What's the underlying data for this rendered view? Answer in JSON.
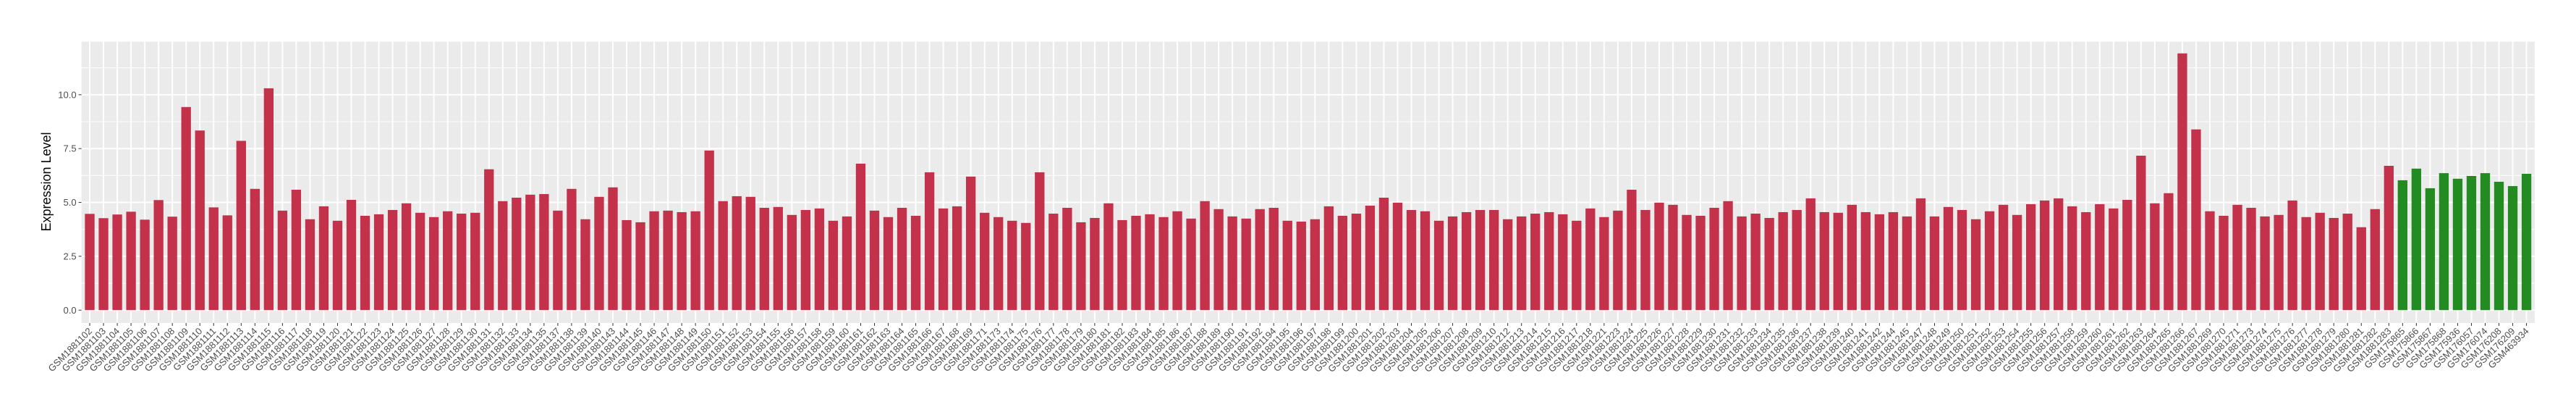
{
  "chart_data": {
    "type": "bar",
    "title": "",
    "xlabel": "",
    "ylabel": "Expression Level",
    "ylim": [
      -0.596,
      12.516
    ],
    "yticks": [
      "0.0",
      "2.5",
      "5.0",
      "7.5",
      "10.0"
    ],
    "grid": true,
    "legend": "none",
    "colors": {
      "series_1": "#C3314A",
      "series_2": "#228B22",
      "panel": "#EBEBEB",
      "grid": "#FFFFFF"
    },
    "categories": [
      "GSM1881102",
      "GSM1881103",
      "GSM1881104",
      "GSM1881105",
      "GSM1881106",
      "GSM1881107",
      "GSM1881108",
      "GSM1881109",
      "GSM1881110",
      "GSM1881111",
      "GSM1881112",
      "GSM1881113",
      "GSM1881114",
      "GSM1881115",
      "GSM1881116",
      "GSM1881117",
      "GSM1881118",
      "GSM1881119",
      "GSM1881120",
      "GSM1881121",
      "GSM1881122",
      "GSM1881123",
      "GSM1881124",
      "GSM1881125",
      "GSM1881126",
      "GSM1881127",
      "GSM1881128",
      "GSM1881129",
      "GSM1881130",
      "GSM1881131",
      "GSM1881132",
      "GSM1881133",
      "GSM1881134",
      "GSM1881135",
      "GSM1881137",
      "GSM1881138",
      "GSM1881139",
      "GSM1881140",
      "GSM1881143",
      "GSM1881144",
      "GSM1881145",
      "GSM1881146",
      "GSM1881147",
      "GSM1881148",
      "GSM1881149",
      "GSM1881150",
      "GSM1881151",
      "GSM1881152",
      "GSM1881153",
      "GSM1881154",
      "GSM1881155",
      "GSM1881156",
      "GSM1881157",
      "GSM1881158",
      "GSM1881159",
      "GSM1881160",
      "GSM1881161",
      "GSM1881162",
      "GSM1881163",
      "GSM1881164",
      "GSM1881165",
      "GSM1881166",
      "GSM1881167",
      "GSM1881168",
      "GSM1881169",
      "GSM1881171",
      "GSM1881173",
      "GSM1881174",
      "GSM1881175",
      "GSM1881176",
      "GSM1881177",
      "GSM1881178",
      "GSM1881179",
      "GSM1881180",
      "GSM1881181",
      "GSM1881182",
      "GSM1881183",
      "GSM1881184",
      "GSM1881185",
      "GSM1881186",
      "GSM1881187",
      "GSM1881188",
      "GSM1881189",
      "GSM1881190",
      "GSM1881191",
      "GSM1881192",
      "GSM1881194",
      "GSM1881195",
      "GSM1881196",
      "GSM1881197",
      "GSM1881198",
      "GSM1881199",
      "GSM1881200",
      "GSM1881201",
      "GSM1881202",
      "GSM1881203",
      "GSM1881204",
      "GSM1881205",
      "GSM1881206",
      "GSM1881207",
      "GSM1881208",
      "GSM1881209",
      "GSM1881210",
      "GSM1881212",
      "GSM1881213",
      "GSM1881214",
      "GSM1881215",
      "GSM1881216",
      "GSM1881217",
      "GSM1881218",
      "GSM1881221",
      "GSM1881223",
      "GSM1881224",
      "GSM1881225",
      "GSM1881226",
      "GSM1881227",
      "GSM1881228",
      "GSM1881229",
      "GSM1881230",
      "GSM1881231",
      "GSM1881232",
      "GSM1881233",
      "GSM1881234",
      "GSM1881235",
      "GSM1881236",
      "GSM1881237",
      "GSM1881238",
      "GSM1881239",
      "GSM1881240",
      "GSM1881241",
      "GSM1881242",
      "GSM1881244",
      "GSM1881245",
      "GSM1881247",
      "GSM1881248",
      "GSM1881249",
      "GSM1881250",
      "GSM1881251",
      "GSM1881252",
      "GSM1881253",
      "GSM1881254",
      "GSM1881255",
      "GSM1881256",
      "GSM1881257",
      "GSM1881258",
      "GSM1881259",
      "GSM1881260",
      "GSM1881261",
      "GSM1881262",
      "GSM1881263",
      "GSM1881264",
      "GSM1881265",
      "GSM1881266",
      "GSM1881267",
      "GSM1881269",
      "GSM1881270",
      "GSM1881271",
      "GSM1881273",
      "GSM1881274",
      "GSM1881275",
      "GSM1881276",
      "GSM1881277",
      "GSM1881278",
      "GSM1881279",
      "GSM1881280",
      "GSM1881281",
      "GSM1881282",
      "GSM1881283",
      "GSM175865",
      "GSM175866",
      "GSM175867",
      "GSM175868",
      "GSM175936",
      "GSM176057",
      "GSM176074",
      "GSM176208",
      "GSM176209",
      "GSM463934"
    ],
    "series": [
      {
        "color_key": "series_1",
        "values": [
          4.47,
          4.27,
          4.44,
          4.57,
          4.2,
          5.11,
          4.34,
          9.43,
          8.34,
          4.77,
          4.4,
          7.86,
          5.63,
          10.3,
          4.62,
          5.59,
          4.22,
          4.82,
          4.15,
          5.12,
          4.38,
          4.45,
          4.65,
          4.96,
          4.52,
          4.32,
          4.59,
          4.48,
          4.52,
          6.54,
          5.06,
          5.22,
          5.36,
          5.39,
          4.62,
          5.63,
          4.22,
          5.26,
          5.7,
          4.18,
          4.08,
          4.59,
          4.62,
          4.55,
          4.59,
          7.41,
          5.06,
          5.29,
          5.26,
          4.75,
          4.79,
          4.42,
          4.65,
          4.72,
          4.15,
          4.35,
          6.8,
          4.62,
          4.32,
          4.75,
          4.38,
          6.4,
          4.72,
          4.82,
          6.2,
          4.52,
          4.32,
          4.15,
          4.05,
          6.4,
          4.48,
          4.75,
          4.08,
          4.28,
          4.96,
          4.18,
          4.38,
          4.45,
          4.32,
          4.59,
          4.25,
          5.06,
          4.69,
          4.35,
          4.25,
          4.69,
          4.75,
          4.15,
          4.11,
          4.22,
          4.82,
          4.38,
          4.48,
          4.85,
          5.22,
          4.99,
          4.65,
          4.59,
          4.15,
          4.35,
          4.55,
          4.65,
          4.65,
          4.22,
          4.35,
          4.48,
          4.55,
          4.45,
          4.15,
          4.72,
          4.32,
          4.62,
          5.59,
          4.65,
          4.99,
          4.89,
          4.42,
          4.38,
          4.75,
          5.06,
          4.35,
          4.48,
          4.28,
          4.55,
          4.65,
          5.19,
          4.55,
          4.52,
          4.89,
          4.55,
          4.45,
          4.55,
          4.35,
          5.19,
          4.35,
          4.79,
          4.65,
          4.22,
          4.59,
          4.89,
          4.42,
          4.92,
          5.09,
          5.19,
          4.82,
          4.55,
          4.92,
          4.72,
          5.12,
          7.17,
          4.96,
          5.43,
          11.92,
          8.39,
          4.59,
          4.38,
          4.89,
          4.75,
          4.35,
          4.42,
          5.09,
          4.32,
          4.52,
          4.28,
          4.48,
          3.85,
          4.69,
          6.7,
          null,
          null,
          null,
          null,
          null,
          null,
          null,
          null,
          null,
          null
        ]
      },
      {
        "color_key": "series_2",
        "values": [
          null,
          null,
          null,
          null,
          null,
          null,
          null,
          null,
          null,
          null,
          null,
          null,
          null,
          null,
          null,
          null,
          null,
          null,
          null,
          null,
          null,
          null,
          null,
          null,
          null,
          null,
          null,
          null,
          null,
          null,
          null,
          null,
          null,
          null,
          null,
          null,
          null,
          null,
          null,
          null,
          null,
          null,
          null,
          null,
          null,
          null,
          null,
          null,
          null,
          null,
          null,
          null,
          null,
          null,
          null,
          null,
          null,
          null,
          null,
          null,
          null,
          null,
          null,
          null,
          null,
          null,
          null,
          null,
          null,
          null,
          null,
          null,
          null,
          null,
          null,
          null,
          null,
          null,
          null,
          null,
          null,
          null,
          null,
          null,
          null,
          null,
          null,
          null,
          null,
          null,
          null,
          null,
          null,
          null,
          null,
          null,
          null,
          null,
          null,
          null,
          null,
          null,
          null,
          null,
          null,
          null,
          null,
          null,
          null,
          null,
          null,
          null,
          null,
          null,
          null,
          null,
          null,
          null,
          null,
          null,
          null,
          null,
          null,
          null,
          null,
          null,
          null,
          null,
          null,
          null,
          null,
          null,
          null,
          null,
          null,
          null,
          null,
          null,
          null,
          null,
          null,
          null,
          null,
          null,
          null,
          null,
          null,
          null,
          null,
          null,
          null,
          null,
          null,
          null,
          null,
          null,
          null,
          null,
          null,
          null,
          null,
          null,
          null,
          null,
          null,
          null,
          null,
          null,
          6.03,
          6.57,
          5.66,
          6.36,
          6.1,
          6.23,
          6.36,
          5.96,
          5.76,
          6.33
        ]
      }
    ]
  }
}
